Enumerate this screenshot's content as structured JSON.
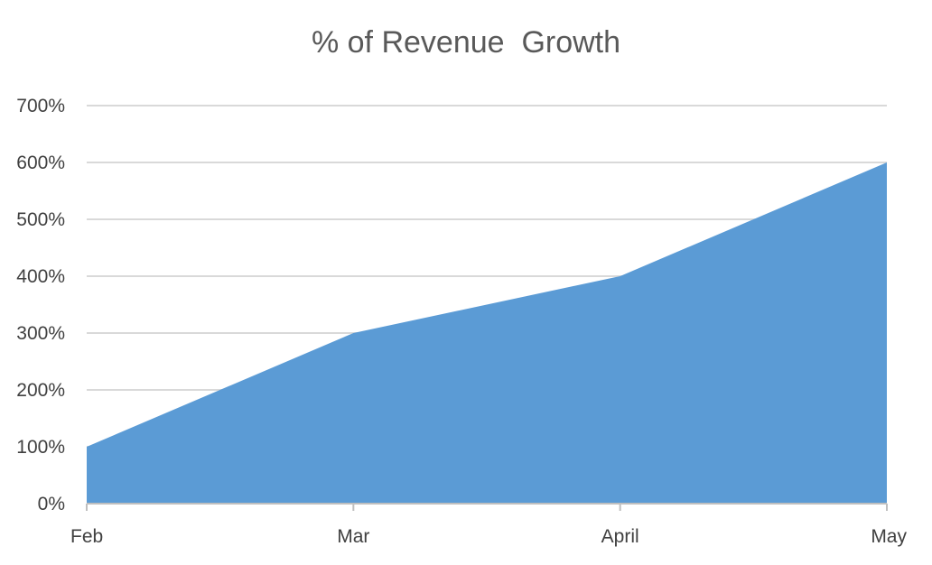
{
  "chart_data": {
    "type": "area",
    "title": "% of Revenue  Growth",
    "categories": [
      "Feb",
      "Mar",
      "April",
      "May"
    ],
    "series": [
      {
        "values": [
          100,
          300,
          400,
          600
        ]
      }
    ],
    "y_ticks": [
      "0%",
      "100%",
      "200%",
      "300%",
      "400%",
      "500%",
      "600%",
      "700%"
    ],
    "ylim": [
      0,
      700
    ],
    "y_unit": "%",
    "grid": true,
    "legend": "none",
    "colors": {
      "fill": "#5b9bd5",
      "grid": "#d9d9d9",
      "axis": "#bfbfbf",
      "text": "#404040",
      "title": "#595959"
    }
  }
}
